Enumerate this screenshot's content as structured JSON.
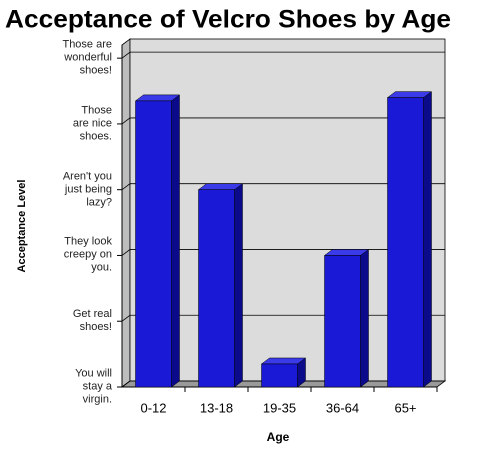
{
  "chart_data": {
    "type": "bar3d",
    "title": "Acceptance of Velcro Shoes by Age",
    "x_label": "Age",
    "y_label": "Acceptance Level",
    "categories": [
      "0-12",
      "13-18",
      "19-35",
      "36-64",
      "65+"
    ],
    "values": [
      4.35,
      3.0,
      0.35,
      2.0,
      4.4
    ],
    "color": "#1a1ad6",
    "ylim": [
      0,
      5.2
    ],
    "yticks": [
      {
        "value": 0,
        "label": "You will\nstay a\nvirgin."
      },
      {
        "value": 1,
        "label": "Get real\nshoes!"
      },
      {
        "value": 2,
        "label": "They look\ncreepy on\nyou."
      },
      {
        "value": 3,
        "label": "Aren't you\njust being\nlazy?"
      },
      {
        "value": 4,
        "label": "Those\nare nice\nshoes."
      },
      {
        "value": 5,
        "label": "Those are\nwonderful\nshoes!"
      }
    ],
    "grid": true
  }
}
